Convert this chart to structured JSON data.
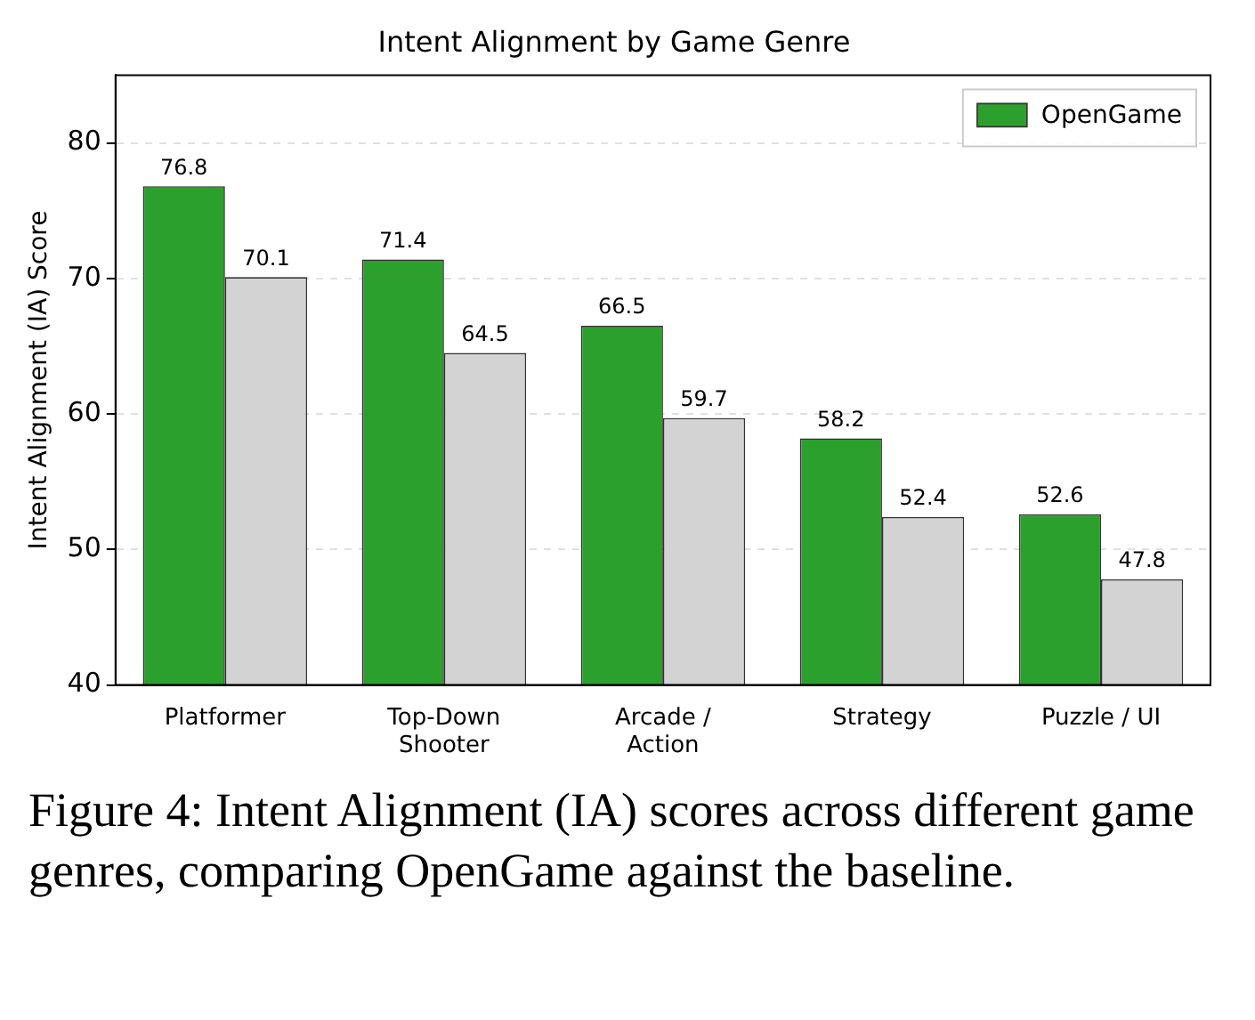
{
  "chart_data": {
    "type": "bar",
    "title": "Intent Alignment by Game Genre",
    "ylabel": "Intent Alignment (IA) Score",
    "categories": [
      "Platformer",
      "Top-Down\nShooter",
      "Arcade /\nAction",
      "Strategy",
      "Puzzle / UI"
    ],
    "series": [
      {
        "name": "OpenGame",
        "color": "#2ca02c",
        "values": [
          76.8,
          71.4,
          66.5,
          58.2,
          52.6
        ]
      },
      {
        "color": "#d3d3d3",
        "values": [
          70.1,
          64.5,
          59.7,
          52.4,
          47.8
        ]
      }
    ],
    "ylim": [
      40,
      85
    ],
    "yticks": [
      40,
      50,
      60,
      70,
      80
    ],
    "grid": "y",
    "legend": "top right",
    "data_labels": true,
    "annotations": [
      "Figure 4: Intent Alignment (IA) scores across different game genres, comparing OpenGame against the baseline."
    ]
  }
}
